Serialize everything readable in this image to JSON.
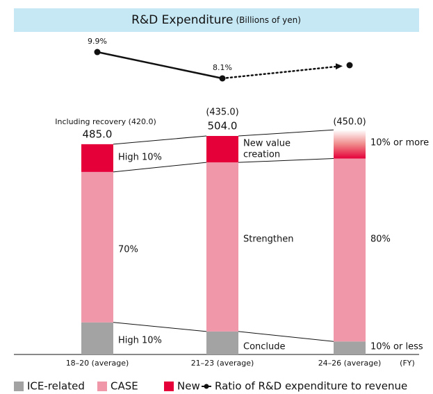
{
  "chart_data": {
    "type": "bar",
    "stacked": true,
    "title": "R&D Expenditure",
    "subtitle": "(Billions of yen)",
    "categories": [
      "18–20 (average)",
      "21–23 (average)",
      "24–26 (average)"
    ],
    "x_label": "(FY)",
    "ylim": [
      0,
      520
    ],
    "y2lim": [
      5,
      12
    ],
    "series": [
      {
        "name": "ICE-related",
        "color": "#a3a3a3",
        "values": [
          74,
          53,
          30
        ]
      },
      {
        "name": "CASE",
        "color": "#f097aa",
        "values": [
          347,
          390,
          422
        ]
      },
      {
        "name": "New",
        "color": "#e5003a",
        "values": [
          64,
          61,
          66
        ]
      },
      {
        "name": "Ratio of R&D expenditure to revenue",
        "type": "line",
        "axis": "y2",
        "color": "#111111",
        "values": [
          9.9,
          8.1,
          9.0
        ],
        "value_labels": [
          "9.9%",
          "8.1%",
          null
        ]
      }
    ],
    "total_labels": [
      "485.0",
      "504.0",
      null
    ],
    "annotations": [
      "Including recovery (420.0)",
      "(435.0)",
      "(450.0)",
      "High 10%",
      "70%",
      "High 10%",
      "New value",
      "creation",
      "Strengthen",
      "Conclude",
      "10% or more",
      "80%",
      "10% or less"
    ]
  }
}
